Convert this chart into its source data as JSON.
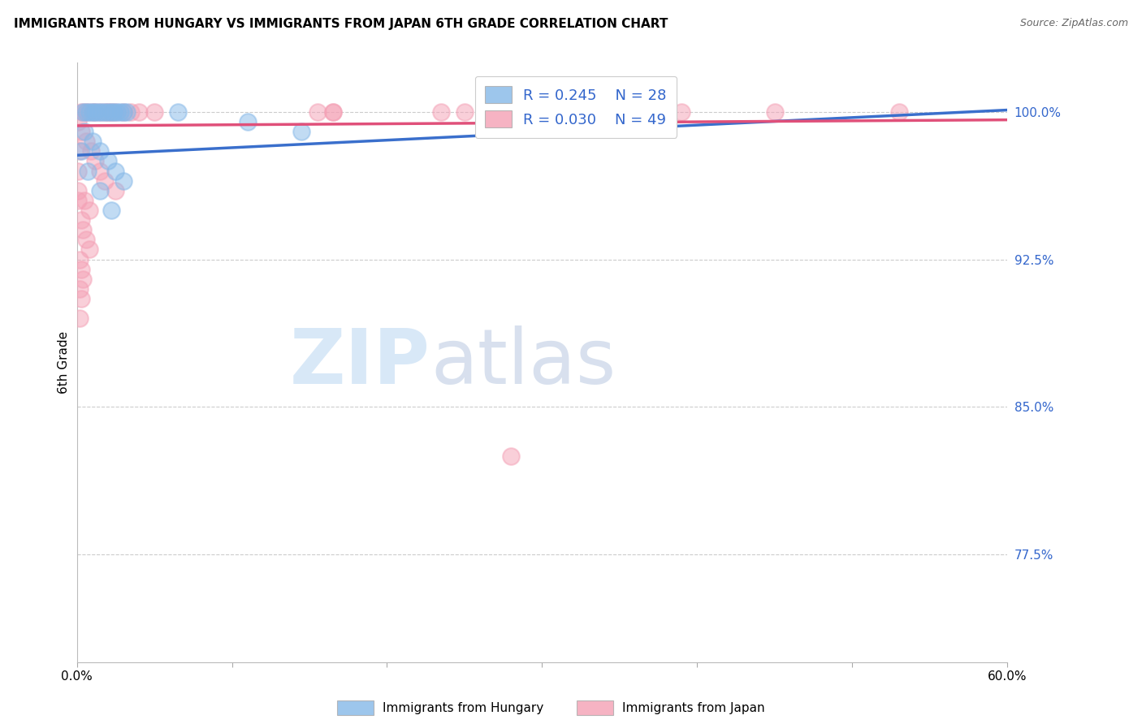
{
  "title": "IMMIGRANTS FROM HUNGARY VS IMMIGRANTS FROM JAPAN 6TH GRADE CORRELATION CHART",
  "source": "Source: ZipAtlas.com",
  "ylabel": "6th Grade",
  "yticks": [
    77.5,
    85.0,
    92.5,
    100.0
  ],
  "ytick_labels": [
    "77.5%",
    "85.0%",
    "92.5%",
    "100.0%"
  ],
  "xmin": 0.0,
  "xmax": 0.6,
  "ymin": 72.0,
  "ymax": 102.5,
  "hungary_color": "#85b8e8",
  "japan_color": "#f4a0b5",
  "hungary_R": 0.245,
  "hungary_N": 28,
  "japan_R": 0.03,
  "japan_N": 49,
  "text_color": "#3366cc",
  "trendline_hungary_color": "#3a6fcc",
  "trendline_japan_color": "#e0507a",
  "watermark_zip": "ZIP",
  "watermark_atlas": "atlas",
  "hungary_trendline": [
    [
      0.0,
      97.8
    ],
    [
      0.6,
      100.1
    ]
  ],
  "japan_trendline": [
    [
      0.0,
      99.3
    ],
    [
      0.6,
      99.6
    ]
  ],
  "hungary_points": [
    [
      0.004,
      100.0
    ],
    [
      0.006,
      100.0
    ],
    [
      0.008,
      100.0
    ],
    [
      0.01,
      100.0
    ],
    [
      0.012,
      100.0
    ],
    [
      0.014,
      100.0
    ],
    [
      0.016,
      100.0
    ],
    [
      0.018,
      100.0
    ],
    [
      0.02,
      100.0
    ],
    [
      0.022,
      100.0
    ],
    [
      0.024,
      100.0
    ],
    [
      0.026,
      100.0
    ],
    [
      0.028,
      100.0
    ],
    [
      0.03,
      100.0
    ],
    [
      0.032,
      100.0
    ],
    [
      0.005,
      99.0
    ],
    [
      0.01,
      98.5
    ],
    [
      0.015,
      98.0
    ],
    [
      0.02,
      97.5
    ],
    [
      0.025,
      97.0
    ],
    [
      0.03,
      96.5
    ],
    [
      0.065,
      100.0
    ],
    [
      0.11,
      99.5
    ],
    [
      0.145,
      99.0
    ],
    [
      0.003,
      98.0
    ],
    [
      0.007,
      97.0
    ],
    [
      0.015,
      96.0
    ],
    [
      0.022,
      95.0
    ]
  ],
  "japan_points": [
    [
      0.003,
      100.0
    ],
    [
      0.005,
      100.0
    ],
    [
      0.007,
      100.0
    ],
    [
      0.01,
      100.0
    ],
    [
      0.012,
      100.0
    ],
    [
      0.015,
      100.0
    ],
    [
      0.018,
      100.0
    ],
    [
      0.02,
      100.0
    ],
    [
      0.022,
      100.0
    ],
    [
      0.025,
      100.0
    ],
    [
      0.03,
      100.0
    ],
    [
      0.035,
      100.0
    ],
    [
      0.04,
      100.0
    ],
    [
      0.05,
      100.0
    ],
    [
      0.003,
      99.0
    ],
    [
      0.006,
      98.5
    ],
    [
      0.009,
      98.0
    ],
    [
      0.012,
      97.5
    ],
    [
      0.015,
      97.0
    ],
    [
      0.018,
      96.5
    ],
    [
      0.025,
      96.0
    ],
    [
      0.005,
      95.5
    ],
    [
      0.008,
      95.0
    ],
    [
      0.003,
      94.5
    ],
    [
      0.004,
      94.0
    ],
    [
      0.006,
      93.5
    ],
    [
      0.008,
      93.0
    ],
    [
      0.002,
      92.5
    ],
    [
      0.003,
      92.0
    ],
    [
      0.004,
      91.5
    ],
    [
      0.002,
      91.0
    ],
    [
      0.003,
      90.5
    ],
    [
      0.002,
      89.5
    ],
    [
      0.165,
      100.0
    ],
    [
      0.25,
      100.0
    ],
    [
      0.35,
      100.0
    ],
    [
      0.45,
      100.0
    ],
    [
      0.53,
      100.0
    ],
    [
      0.165,
      100.0
    ],
    [
      0.27,
      100.0
    ],
    [
      0.39,
      100.0
    ],
    [
      0.28,
      82.5
    ],
    [
      0.155,
      100.0
    ],
    [
      0.235,
      100.0
    ],
    [
      0.001,
      99.5
    ],
    [
      0.002,
      98.0
    ],
    [
      0.001,
      97.0
    ],
    [
      0.001,
      96.0
    ],
    [
      0.001,
      95.5
    ]
  ]
}
